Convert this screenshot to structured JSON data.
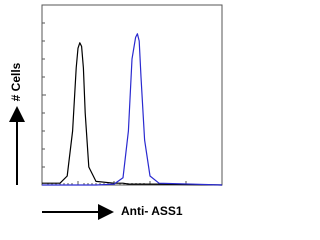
{
  "chart_data": {
    "type": "line",
    "y_label": "# Cells",
    "x_label": "Anti- ASS1",
    "x": [
      0,
      10,
      14,
      17,
      19,
      20,
      21,
      22,
      23,
      24,
      26,
      30,
      40,
      45,
      48,
      50,
      52,
      53,
      54,
      55,
      57,
      60,
      65,
      100
    ],
    "series": [
      {
        "color": "#000000",
        "values": [
          1,
          1,
          5,
          30,
          65,
          76,
          79,
          77,
          65,
          40,
          10,
          2,
          1,
          1,
          0.5,
          0.5,
          0.5,
          0.5,
          0.5,
          0.5,
          0.5,
          0.5,
          0.5,
          0
        ]
      },
      {
        "color": "#2a2ad0",
        "values": [
          0,
          0,
          0,
          0,
          0,
          0,
          0,
          0,
          0,
          0,
          0,
          0,
          0.5,
          4,
          30,
          70,
          82,
          84,
          80,
          60,
          25,
          5,
          1,
          0
        ]
      }
    ],
    "xlim": [
      0,
      100
    ],
    "ylim": [
      0,
      100
    ]
  }
}
